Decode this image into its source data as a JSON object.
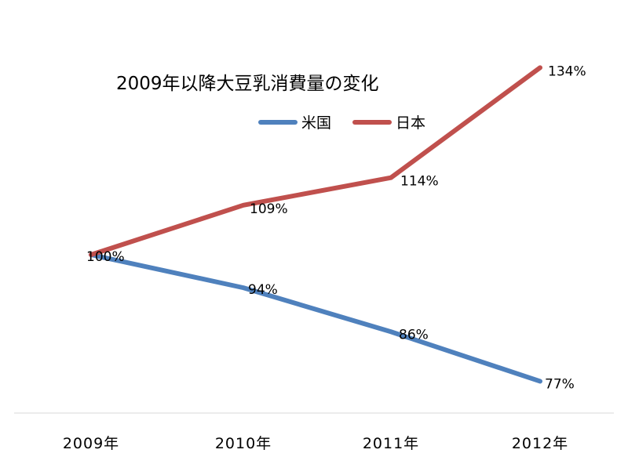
{
  "chart_data": {
    "type": "line",
    "title": "2009年以降大豆乳消費量の変化",
    "xlabel": "",
    "ylabel": "",
    "categories": [
      "2009年",
      "2010年",
      "2011年",
      "2012年"
    ],
    "series": [
      {
        "name": "米国",
        "values": [
          100,
          94,
          86,
          77
        ],
        "labels": [
          "100%",
          "94%",
          "86%",
          "77%"
        ],
        "color": "#4f81bd"
      },
      {
        "name": "日本",
        "values": [
          100,
          109,
          114,
          134
        ],
        "labels": [
          "",
          "109%",
          "114%",
          "134%"
        ],
        "color": "#c0504d"
      }
    ],
    "ylim": [
      60,
      140
    ],
    "grid": false,
    "legend": "top-center",
    "axis_color": "#d9d9d9"
  }
}
